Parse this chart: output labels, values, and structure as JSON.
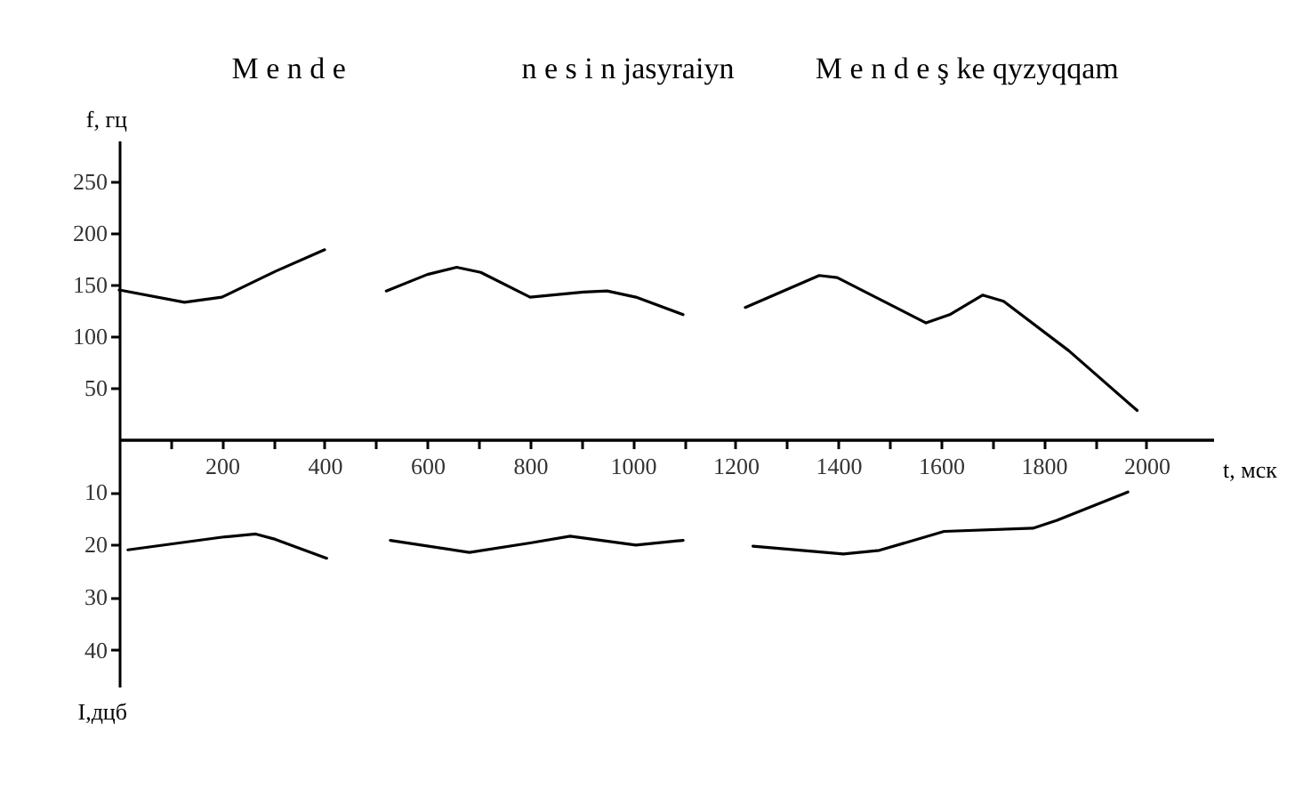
{
  "chart_data": [
    {
      "type": "line",
      "xlabel": "t, мск",
      "ylabel": "f, гц",
      "annotations": [
        "M e n d e",
        "n e s i n jasyraiyn",
        "M e n d e ş ke qyzyqqam"
      ],
      "x": [
        0,
        127,
        200,
        304,
        400,
        460,
        520,
        600,
        657,
        704,
        800,
        904,
        950,
        1006,
        1098,
        1160,
        1219,
        1363,
        1398,
        1571,
        1617,
        1681,
        1722,
        1849,
        1982
      ],
      "series": [
        {
          "color": "#000000",
          "values": [
            145,
            133,
            138,
            163,
            184,
            null,
            144,
            160,
            167,
            162,
            138,
            143,
            144,
            138,
            121,
            null,
            128,
            159,
            157,
            113,
            121,
            140,
            134,
            86,
            28
          ]
        }
      ],
      "xlim": [
        0,
        2130
      ],
      "xticks": [
        {
          "value": 100,
          "label": null
        },
        200,
        {
          "value": 300,
          "label": null
        },
        400,
        {
          "value": 500,
          "label": null
        },
        600,
        {
          "value": 700,
          "label": null
        },
        800,
        {
          "value": 900,
          "label": null
        },
        1000,
        {
          "value": 1100,
          "label": null
        },
        1200,
        {
          "value": 1300,
          "label": null
        },
        1400,
        {
          "value": 1500,
          "label": null
        },
        1600,
        {
          "value": 1700,
          "label": null
        },
        1800,
        {
          "value": 1900,
          "label": null
        },
        2000
      ],
      "ylim": [
        0,
        290
      ],
      "yticks": [
        50,
        100,
        150,
        200,
        250
      ],
      "line_style": "solid"
    },
    {
      "type": "line",
      "ylabel": "I,дцб",
      "x": [
        17,
        200,
        266,
        304,
        404,
        466,
        528,
        682,
        800,
        878,
        1006,
        1098,
        1166,
        1234,
        1410,
        1480,
        1606,
        1779,
        1826,
        1964
      ],
      "series": [
        {
          "color": "#000000",
          "values": [
            21,
            18.6,
            18,
            19,
            22.6,
            null,
            19.2,
            21.5,
            19.7,
            18.4,
            20.1,
            19.2,
            null,
            20.3,
            21.8,
            21.1,
            17.5,
            16.9,
            15.4,
            10
          ]
        }
      ],
      "xlim": [
        0,
        2130
      ],
      "ylim": [
        47,
        0
      ],
      "yticks": [
        10,
        20,
        30,
        40
      ],
      "tick_labels": "y",
      "line_style": "solid"
    }
  ]
}
